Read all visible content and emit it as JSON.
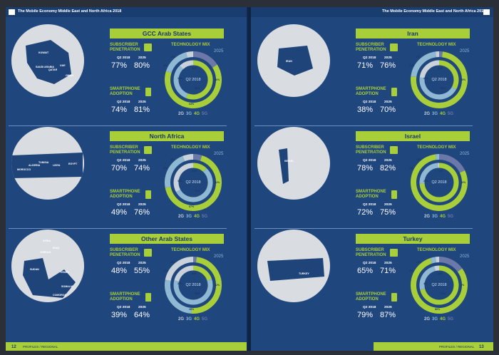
{
  "header": {
    "left": "The Mobile Economy Middle East and North Africa 2018",
    "right": "The Mobile Economy Middle East and North Africa 2018"
  },
  "labels": {
    "subscriber": "SUBSCRIBER\nPENETRATION",
    "smartphone": "SMARTPHONE\nADOPTION",
    "q2": "Q2 2018",
    "y2025": "2025",
    "techmix": "TECHNOLOGY MIX",
    "donut_center": "Q2 2018",
    "legend": {
      "g2": "2G",
      "g3": "3G",
      "g4": "4G",
      "g5": "5G"
    }
  },
  "colors": {
    "g2": "#c9d2da",
    "g3": "#8fb8d2",
    "g4": "#a8cf3a",
    "g5": "#6b78a8",
    "page": "#20467e",
    "accent": "#a8cf3a"
  },
  "regions": [
    {
      "name": "GCC Arab States",
      "sub_q2": "77%",
      "sub_2025": "80%",
      "smart_q2": "74%",
      "smart_2025": "81%",
      "map_labels": [
        "KUWAIT",
        "SAUDI ARABIA",
        "QATAR",
        "UAE",
        "OMAN"
      ],
      "outer": [
        {
          "tech": "g5",
          "pct": 16
        },
        {
          "tech": "g4",
          "pct": 64
        },
        {
          "tech": "g3",
          "pct": 16
        },
        {
          "tech": "g2",
          "pct": 4
        }
      ],
      "inner": [
        {
          "tech": "g4",
          "pct": 56
        },
        {
          "tech": "g3",
          "pct": 32
        },
        {
          "tech": "g2",
          "pct": 12
        }
      ],
      "outer_labels": [
        "16%",
        "4%",
        "16%",
        "64%"
      ],
      "inner_labels": [
        "12%",
        "32%",
        "56%"
      ]
    },
    {
      "name": "North Africa",
      "sub_q2": "70%",
      "sub_2025": "74%",
      "smart_q2": "49%",
      "smart_2025": "76%",
      "map_labels": [
        "MOROCCO",
        "ALGERIA",
        "TUNISIA",
        "LIBYA",
        "EGYPT"
      ],
      "outer": [
        {
          "tech": "g5",
          "pct": 5
        },
        {
          "tech": "g4",
          "pct": 67
        },
        {
          "tech": "g3",
          "pct": 22
        },
        {
          "tech": "g2",
          "pct": 6
        }
      ],
      "inner": [
        {
          "tech": "g4",
          "pct": 12
        },
        {
          "tech": "g3",
          "pct": 55
        },
        {
          "tech": "g2",
          "pct": 33
        }
      ],
      "outer_labels": [
        "5%",
        "6%",
        "22%",
        "67%"
      ],
      "inner_labels": [
        "33%",
        "55%",
        "12%"
      ]
    },
    {
      "name": "Other Arab States",
      "sub_q2": "48%",
      "sub_2025": "55%",
      "smart_q2": "39%",
      "smart_2025": "64%",
      "map_labels": [
        "SYRIA",
        "JORDAN",
        "IRAQ",
        "SUDAN",
        "YEMEN",
        "SOMALIA",
        "COMOROS"
      ],
      "outer": [
        {
          "tech": "g5",
          "pct": 2
        },
        {
          "tech": "g4",
          "pct": 49
        },
        {
          "tech": "g3",
          "pct": 27
        },
        {
          "tech": "g2",
          "pct": 22
        }
      ],
      "inner": [
        {
          "tech": "g4",
          "pct": 20
        },
        {
          "tech": "g3",
          "pct": 59
        },
        {
          "tech": "g2",
          "pct": 21
        }
      ],
      "outer_labels": [
        "2%",
        "27%",
        "22%",
        "49%"
      ],
      "inner_labels": [
        "21%",
        "59%",
        "20%"
      ]
    },
    {
      "name": "Iran",
      "sub_q2": "71%",
      "sub_2025": "76%",
      "smart_q2": "38%",
      "smart_2025": "70%",
      "map_labels": [
        "IRAN"
      ],
      "outer": [
        {
          "tech": "g5",
          "pct": 2
        },
        {
          "tech": "g4",
          "pct": 75
        },
        {
          "tech": "g3",
          "pct": 21
        },
        {
          "tech": "g2",
          "pct": 2
        }
      ],
      "inner": [
        {
          "tech": "g4",
          "pct": 33
        },
        {
          "tech": "g3",
          "pct": 44
        },
        {
          "tech": "g2",
          "pct": 23
        }
      ],
      "outer_labels": [
        "2%",
        "21%",
        "75%"
      ],
      "inner_labels": [
        "23%",
        "44%",
        "33%"
      ]
    },
    {
      "name": "Israel",
      "sub_q2": "78%",
      "sub_2025": "82%",
      "smart_q2": "72%",
      "smart_2025": "75%",
      "map_labels": [
        "ISRAEL"
      ],
      "outer": [
        {
          "tech": "g5",
          "pct": 18
        },
        {
          "tech": "g4",
          "pct": 80
        },
        {
          "tech": "g3",
          "pct": 2
        }
      ],
      "inner": [
        {
          "tech": "g4",
          "pct": 74
        },
        {
          "tech": "g3",
          "pct": 25
        },
        {
          "tech": "g2",
          "pct": 1
        }
      ],
      "outer_labels": [
        "18%",
        "2%",
        "80%"
      ],
      "inner_labels": [
        "25%",
        "74%"
      ]
    },
    {
      "name": "Turkey",
      "sub_q2": "65%",
      "sub_2025": "71%",
      "smart_q2": "79%",
      "smart_2025": "87%",
      "map_labels": [
        "TURKEY"
      ],
      "outer": [
        {
          "tech": "g5",
          "pct": 15
        },
        {
          "tech": "g4",
          "pct": 80
        },
        {
          "tech": "g3",
          "pct": 3
        },
        {
          "tech": "g2",
          "pct": 2
        }
      ],
      "inner": [
        {
          "tech": "g4",
          "pct": 71
        },
        {
          "tech": "g3",
          "pct": 25
        },
        {
          "tech": "g2",
          "pct": 4
        }
      ],
      "outer_labels": [
        "15%",
        "3%",
        "2%",
        "80%"
      ],
      "inner_labels": [
        "4%",
        "25%",
        "71%"
      ]
    }
  ],
  "footer": {
    "left_num": "12",
    "right_num": "13",
    "left_text": "PROFILES / REGIONAL",
    "right_text": "PROFILES / REGIONAL"
  }
}
